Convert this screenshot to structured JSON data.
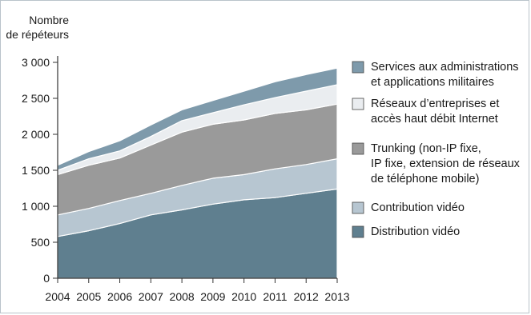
{
  "chart_data": {
    "type": "area",
    "stacked": true,
    "ylabel_lines": [
      "Nombre",
      "de répéteurs"
    ],
    "xlabel": "",
    "ylim": [
      0,
      3000
    ],
    "x": [
      2004,
      2005,
      2006,
      2007,
      2008,
      2009,
      2010,
      2011,
      2012,
      2013
    ],
    "y_ticks": [
      0,
      500,
      1000,
      1500,
      2000,
      2500,
      3000
    ],
    "y_tick_labels": [
      "0",
      "500",
      "1 000",
      "1 500",
      "2 000",
      "2 500",
      "3 000"
    ],
    "grid": false,
    "legend_position": "right",
    "series": [
      {
        "name": "Distribution vidéo",
        "legend_lines": [
          "Distribution vidéo"
        ],
        "color": "#5f7f8f",
        "values": [
          580,
          660,
          760,
          880,
          950,
          1030,
          1090,
          1120,
          1180,
          1240
        ]
      },
      {
        "name": "Contribution vidéo",
        "legend_lines": [
          "Contribution vidéo"
        ],
        "color": "#b7c6d1",
        "values": [
          300,
          310,
          320,
          300,
          340,
          360,
          350,
          400,
          400,
          420
        ]
      },
      {
        "name": "Trunking (non-IP fixe, IP fixe, extension de réseaux de téléphone mobile)",
        "legend_lines": [
          "Trunking (non-IP fixe,",
          "IP fixe, extension de réseaux",
          "de téléphone mobile)"
        ],
        "color": "#9a9a9a",
        "values": [
          560,
          600,
          590,
          670,
          740,
          750,
          760,
          770,
          760,
          760
        ]
      },
      {
        "name": "Réseaux d’entreprises et accès haut débit Internet",
        "legend_lines": [
          "Réseaux d’entreprises et",
          "accès haut débit Internet"
        ],
        "color": "#eaedf0",
        "values": [
          60,
          90,
          100,
          120,
          160,
          160,
          210,
          220,
          260,
          270
        ]
      },
      {
        "name": "Services aux administrations et applications militaires",
        "legend_lines": [
          "Services aux administrations",
          "et applications militaires"
        ],
        "color": "#7e9aab",
        "values": [
          70,
          100,
          140,
          160,
          150,
          170,
          190,
          220,
          230,
          230
        ]
      }
    ]
  }
}
